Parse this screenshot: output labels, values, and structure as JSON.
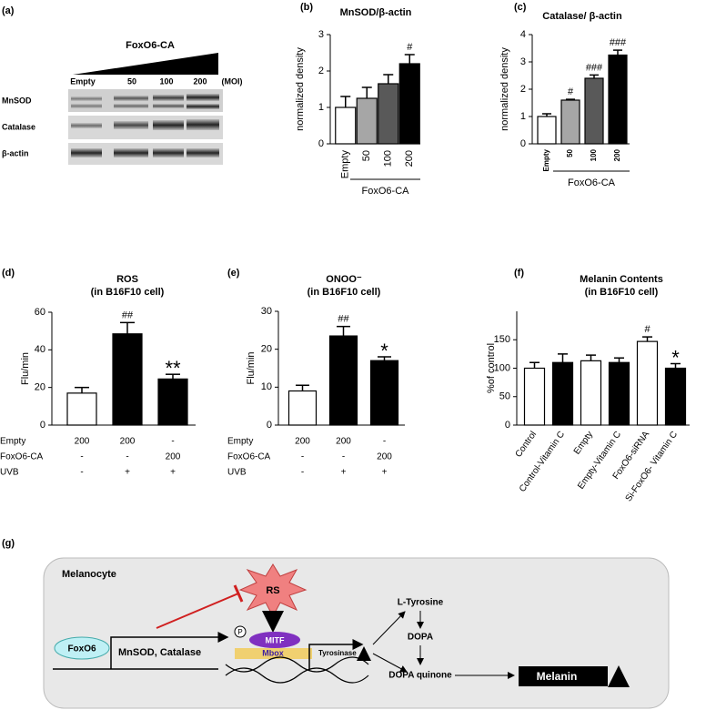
{
  "blot": {
    "label": "(a)",
    "treatment": "FoxO6-CA",
    "lanes": [
      "Empty",
      "50",
      "100",
      "200"
    ],
    "unit": "(MOI)",
    "rows": [
      "MnSOD",
      "Catalase",
      "β-actin"
    ]
  },
  "chart_data": [
    {
      "type": "bar",
      "panel": "(b)",
      "title": "MnSOD/β-actin",
      "ylabel": "normalized density",
      "categories": [
        "Empty",
        "50",
        "100",
        "200"
      ],
      "values": [
        1.0,
        1.25,
        1.65,
        2.2
      ],
      "errors": [
        0.3,
        0.3,
        0.25,
        0.25
      ],
      "colors": [
        "#ffffff",
        "#a6a6a6",
        "#595959",
        "#000000"
      ],
      "annotations": [
        null,
        null,
        null,
        "#"
      ],
      "group_label": "FoxO6-CA",
      "ylim": [
        0,
        3
      ],
      "yticks": [
        0,
        1,
        2,
        3
      ]
    },
    {
      "type": "bar",
      "panel": "(c)",
      "title": "Catalase/ β-actin",
      "ylabel": "normalized density",
      "categories": [
        "Empty",
        "50",
        "100",
        "200"
      ],
      "values": [
        1.0,
        1.6,
        2.4,
        3.25
      ],
      "errors": [
        0.1,
        0.03,
        0.12,
        0.18
      ],
      "colors": [
        "#ffffff",
        "#a6a6a6",
        "#595959",
        "#000000"
      ],
      "annotations": [
        null,
        "#",
        "###",
        "###"
      ],
      "group_label": "FoxO6-CA",
      "ylim": [
        0,
        4
      ],
      "yticks": [
        0,
        1,
        2,
        3,
        4
      ]
    },
    {
      "type": "bar",
      "panel": "(d)",
      "title": "ROS",
      "subtitle": "(in B16F10 cell)",
      "ylabel": "Flu/min",
      "values": [
        17,
        48.5,
        24.5
      ],
      "errors": [
        3,
        6,
        2.5
      ],
      "colors": [
        "#ffffff",
        "#000000",
        "#000000"
      ],
      "annotations": [
        null,
        "##",
        "**"
      ],
      "ylim": [
        0,
        60
      ],
      "yticks": [
        0,
        20,
        40,
        60
      ],
      "conditions": [
        {
          "name": "Empty",
          "values": [
            200,
            200,
            "-"
          ]
        },
        {
          "name": "FoxO6-CA",
          "values": [
            "-",
            "-",
            200
          ]
        },
        {
          "name": "UVB",
          "values": [
            "-",
            "+",
            "+"
          ]
        }
      ]
    },
    {
      "type": "bar",
      "panel": "(e)",
      "title": "ONOO⁻",
      "subtitle": "(in B16F10 cell)",
      "ylabel": "Flu/min",
      "values": [
        9,
        23.5,
        17
      ],
      "errors": [
        1.5,
        2.5,
        1
      ],
      "colors": [
        "#ffffff",
        "#000000",
        "#000000"
      ],
      "annotations": [
        null,
        "##",
        "*"
      ],
      "ylim": [
        0,
        30
      ],
      "yticks": [
        0,
        10,
        20,
        30
      ],
      "conditions": [
        {
          "name": "Empty",
          "values": [
            200,
            200,
            "-"
          ]
        },
        {
          "name": "FoxO6-CA",
          "values": [
            "-",
            "-",
            200
          ]
        },
        {
          "name": "UVB",
          "values": [
            "-",
            "+",
            "+"
          ]
        }
      ]
    },
    {
      "type": "bar",
      "panel": "(f)",
      "title": "Melanin Contents",
      "subtitle": "(in B16F10 cell)",
      "ylabel": "%of control",
      "categories": [
        "Control",
        "Control-Vitamin C",
        "Empty",
        "Empty-Vitamin C",
        "FoxO6-siRNA",
        "Si-FoxO6- Vitamin C"
      ],
      "values": [
        100,
        110,
        113,
        110,
        147,
        100
      ],
      "errors": [
        10,
        15,
        10,
        8,
        8,
        8
      ],
      "colors": [
        "#ffffff",
        "#000000",
        "#ffffff",
        "#000000",
        "#ffffff",
        "#000000"
      ],
      "annotations": [
        null,
        null,
        null,
        null,
        "#",
        "*"
      ],
      "ylim": [
        0,
        200
      ],
      "yticks": [
        0,
        50,
        100,
        150
      ]
    }
  ],
  "diagram": {
    "label": "(g)",
    "cell": "Melanocyte",
    "rs": "RS",
    "foxo6": "FoxO6",
    "targets": "MnSOD, Catalase",
    "p": "P",
    "mitf": "MITF",
    "mbox": "Mbox",
    "tyrosinase": "Tyrosinase",
    "l_tyrosine": "L-Tyrosine",
    "dopa": "DOPA",
    "dopa_quinone": "DOPA quinone",
    "melanin": "Melanin"
  }
}
